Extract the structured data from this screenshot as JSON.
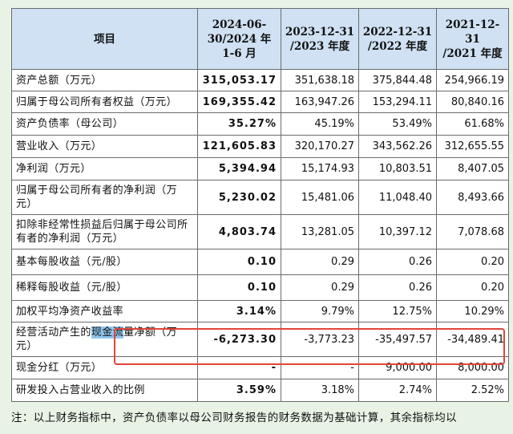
{
  "headers": [
    "项目",
    "2024-06-30/2024 年 1-6 月",
    "2023-12-31 /2023 年度",
    "2022-12-31 /2022 年度",
    "2021-12-31 /2021 年度"
  ],
  "header_lines": {
    "col0": "项目",
    "col1_a": "2024-06-",
    "col1_b": "30/2024 年",
    "col1_c": "1-6 月",
    "col2_a": "2023-12-31",
    "col2_b": "/2023 年度",
    "col3_a": "2022-12-31",
    "col3_b": "/2022 年度",
    "col4_a": "2021-12-31",
    "col4_b": "/2021 年度"
  },
  "rows": [
    {
      "item": "资产总额（万元）",
      "h1": "315,053.17",
      "y2023": "351,638.18",
      "y2022": "375,844.48",
      "y2021": "254,966.19"
    },
    {
      "item": "归属于母公司所有者权益（万元）",
      "h1": "169,355.42",
      "y2023": "163,947.26",
      "y2022": "153,294.11",
      "y2021": "80,840.16"
    },
    {
      "item": "资产负债率（母公司）",
      "h1": "35.27%",
      "y2023": "45.19%",
      "y2022": "53.49%",
      "y2021": "61.68%"
    },
    {
      "item": "营业收入（万元）",
      "h1": "121,605.83",
      "y2023": "320,170.27",
      "y2022": "343,562.26",
      "y2021": "312,655.55"
    },
    {
      "item": "净利润（万元）",
      "h1": "5,394.94",
      "y2023": "15,174.93",
      "y2022": "10,803.51",
      "y2021": "8,407.05"
    },
    {
      "item": "归属于母公司所有者的净利润（万元）",
      "h1": "5,230.02",
      "y2023": "15,481.06",
      "y2022": "11,048.40",
      "y2021": "8,493.66"
    },
    {
      "item": "扣除非经常性损益后归属于母公司所有者的净利润（万元）",
      "h1": "4,803.74",
      "y2023": "13,281.05",
      "y2022": "10,397.12",
      "y2021": "7,078.68"
    },
    {
      "item": "基本每股收益（元/股）",
      "h1": "0.10",
      "y2023": "0.29",
      "y2022": "0.26",
      "y2021": "0.20"
    },
    {
      "item": "稀释每股收益（元/股）",
      "h1": "0.10",
      "y2023": "0.29",
      "y2022": "0.26",
      "y2021": "0.20"
    },
    {
      "item": "加权平均净资产收益率",
      "h1": "3.14%",
      "y2023": "9.79%",
      "y2022": "12.75%",
      "y2021": "10.29%"
    },
    {
      "item_pre": "经营活动产生的",
      "item_hl": "现金流",
      "item_post": "量净额（万元）",
      "h1": "-6,273.30",
      "y2023": "-3,773.23",
      "y2022": "-35,497.57",
      "y2021": "-34,489.41"
    },
    {
      "item": "现金分红（万元）",
      "h1": "-",
      "y2023": "-",
      "y2022": "9,000.00",
      "y2021": "8,000.00"
    },
    {
      "item": "研发投入占营业收入的比例",
      "h1": "3.59%",
      "y2023": "3.18%",
      "y2022": "2.74%",
      "y2021": "2.52%"
    }
  ],
  "note": "注：以上财务指标中，资产负债率以母公司财务报告的财务数据为基础计算，其余指标均以",
  "colors": {
    "header_bg": "#cfe1f3",
    "page_bg": "#e8f3e6",
    "highlight": "#8fc6ee",
    "callout_border": "#e0463a"
  }
}
